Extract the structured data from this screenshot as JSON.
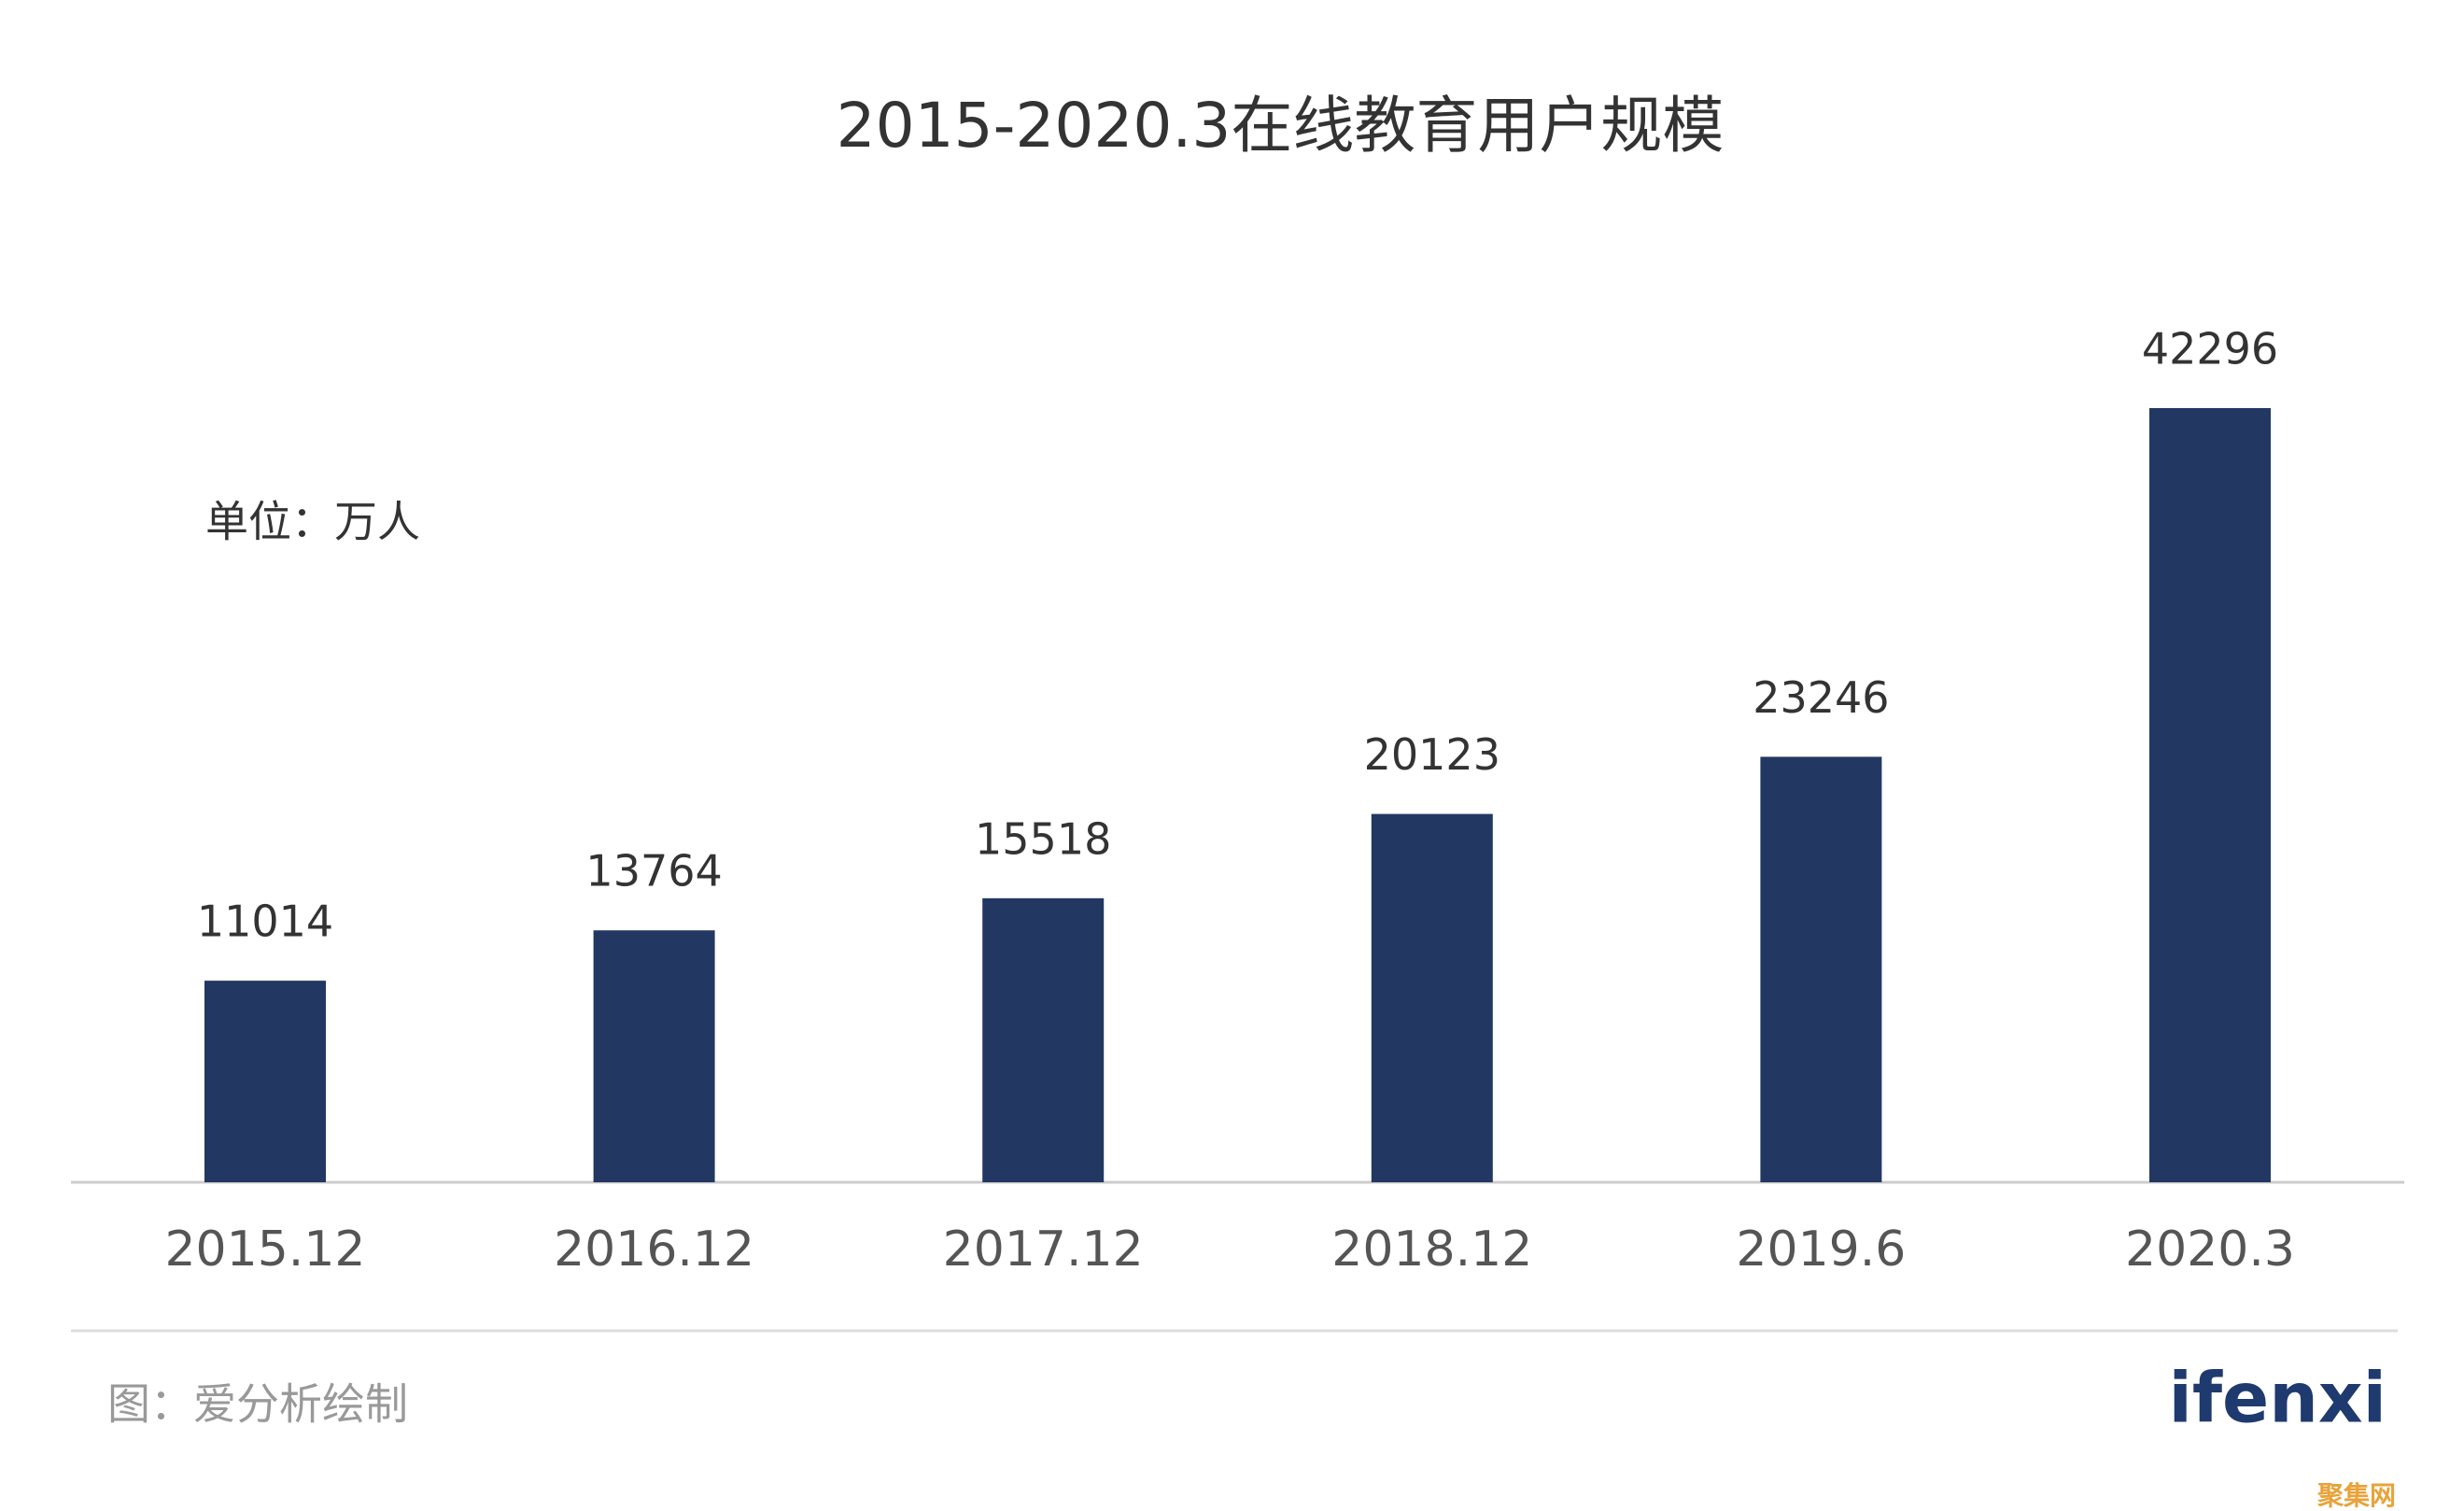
{
  "chart_data": {
    "type": "bar",
    "title": "2015-2020.3在线教育用户规模",
    "unit_label": "单位：万人",
    "categories": [
      "2015.12",
      "2016.12",
      "2017.12",
      "2018.12",
      "2019.6",
      "2020.3"
    ],
    "values": [
      11014,
      13764,
      15518,
      20123,
      23246,
      42296
    ],
    "color": "#223862"
  },
  "footer": {
    "source": "图：爱分析绘制",
    "logo": "ifenxi",
    "watermark": "聚集网"
  }
}
